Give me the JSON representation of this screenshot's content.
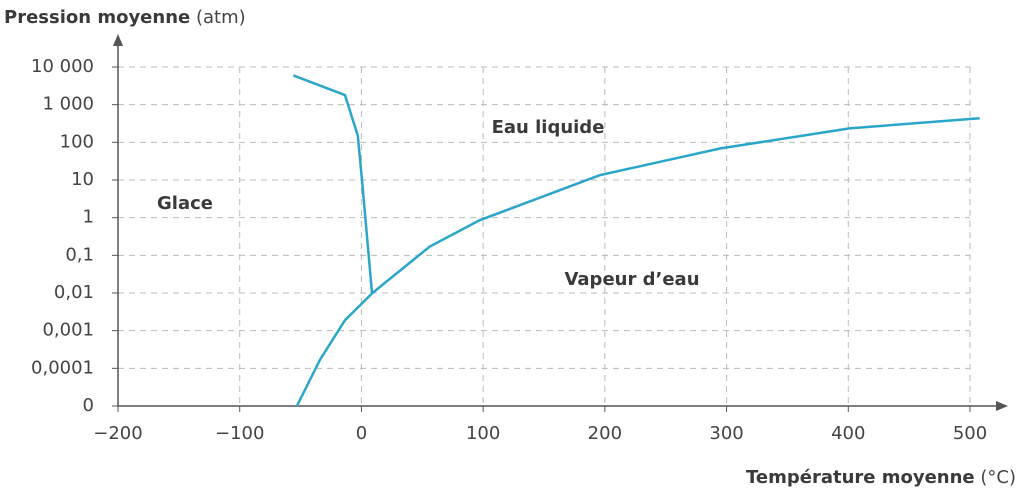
{
  "chart_data": {
    "type": "line",
    "y_label": "Pression moyenne",
    "y_unit": "(atm)",
    "x_label": "Température moyenne",
    "x_unit": "(°C)",
    "annotations": [
      "Eau liquide",
      "Glace",
      "Vapeur d’eau"
    ],
    "xlim": [
      -200,
      500
    ],
    "xticks": [
      {
        "value": -200,
        "label": "−200"
      },
      {
        "value": -100,
        "label": "−100"
      },
      0,
      100,
      200,
      300,
      400,
      500
    ],
    "ylim": [
      1e-05,
      10000
    ],
    "ylog": true,
    "yticks": [
      {
        "value": 1e-05,
        "label": "0"
      },
      {
        "value": 0.0001,
        "label": "0,0001"
      },
      {
        "value": 0.001,
        "label": "0,001"
      },
      {
        "value": 0.01,
        "label": "0,01"
      },
      {
        "value": 0.1,
        "label": "0,1"
      },
      1,
      10,
      100,
      {
        "value": 1000,
        "label": "1 000"
      },
      {
        "value": 10000,
        "label": "10 000"
      }
    ],
    "grid": true,
    "series": [
      {
        "color": "#2ba6cb",
        "x": [
          -56,
          -13.5,
          -3,
          0.5,
          8.7
        ],
        "values": [
          6000,
          1800,
          150,
          10,
          0.01
        ]
      },
      {
        "color": "#2ba6cb",
        "x": [
          -53,
          -34,
          -13.5,
          9,
          56,
          97,
          196,
          295,
          401,
          508
        ],
        "values": [
          1e-05,
          0.00017,
          0.0019,
          0.01,
          0.17,
          0.85,
          13.5,
          69,
          235,
          436
        ]
      }
    ]
  }
}
